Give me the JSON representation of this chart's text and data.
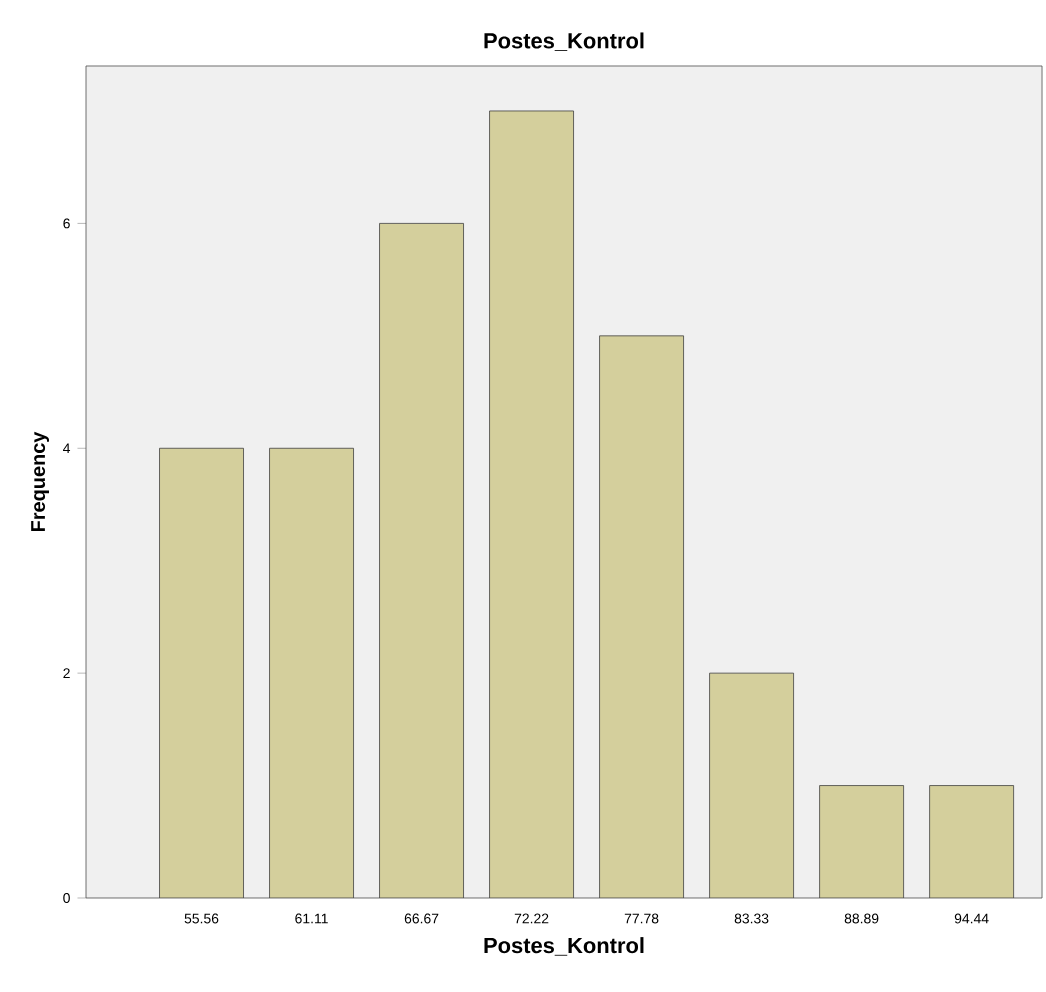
{
  "chart_data": {
    "type": "bar",
    "title": "Postes_Kontrol",
    "xlabel": "Postes_Kontrol",
    "ylabel": "Frequency",
    "categories": [
      "55.56",
      "61.11",
      "66.67",
      "72.22",
      "77.78",
      "83.33",
      "88.89",
      "94.44"
    ],
    "values": [
      4,
      4,
      6,
      7,
      5,
      2,
      1,
      1
    ],
    "color": "#d4cf9c",
    "ylim": [
      0,
      7.4
    ],
    "yticks": [
      0,
      2,
      4,
      6
    ]
  }
}
